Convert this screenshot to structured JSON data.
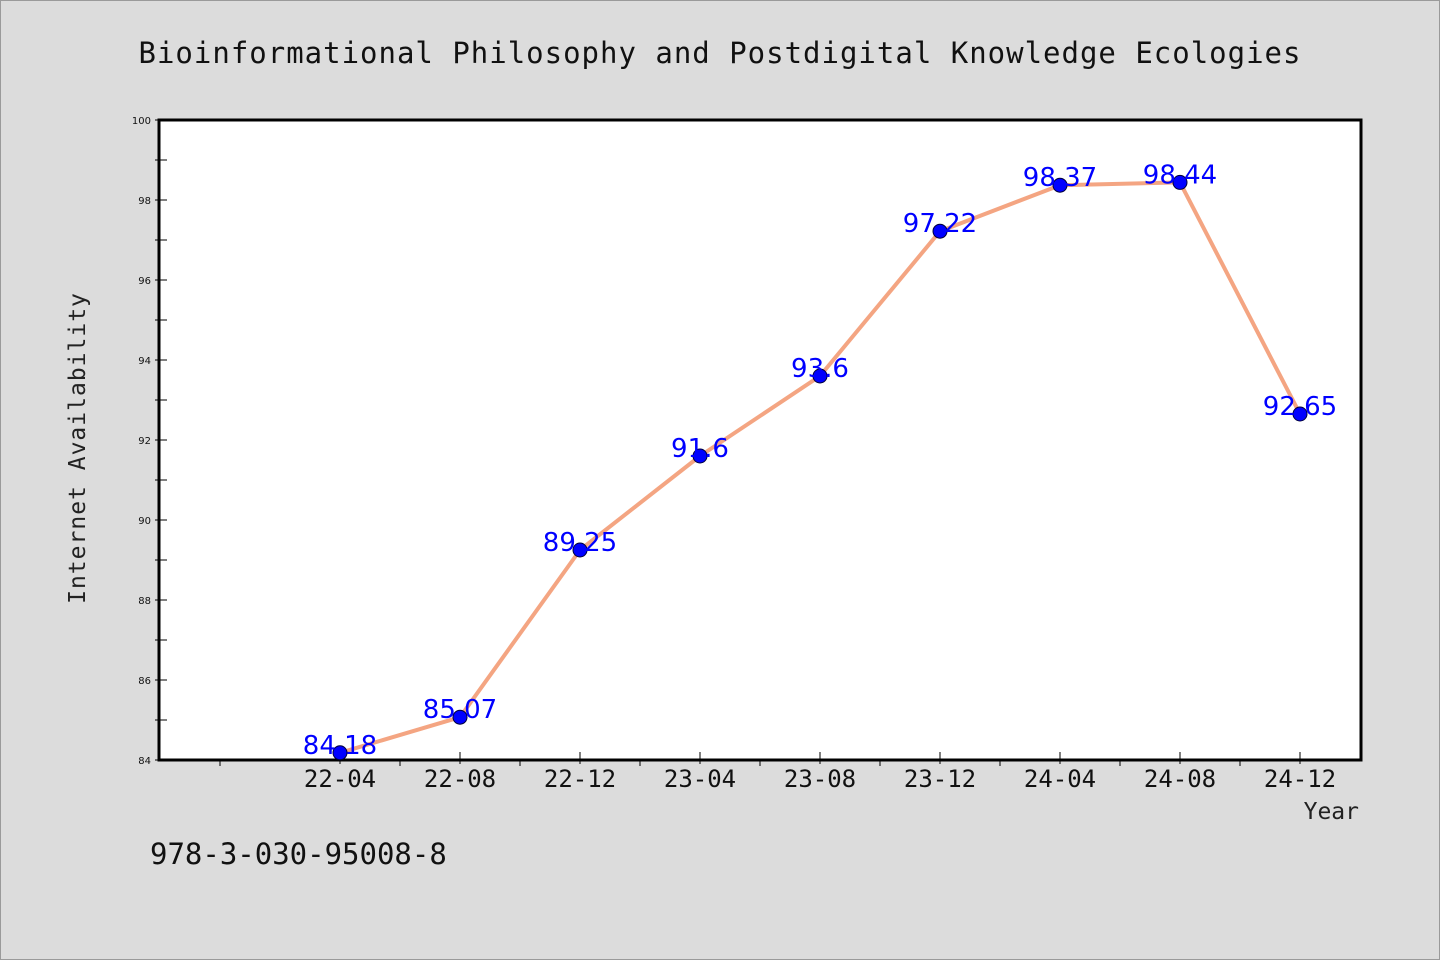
{
  "chart_data": {
    "type": "line",
    "title": "Bioinformational Philosophy and Postdigital Knowledge Ecologies",
    "xlabel": "Year",
    "ylabel": "Internet Availability",
    "categories": [
      "22-04",
      "22-08",
      "22-12",
      "23-04",
      "23-08",
      "23-12",
      "24-04",
      "24-08",
      "24-12"
    ],
    "series": [
      {
        "values": [
          84.18,
          85.07,
          89.25,
          91.6,
          93.6,
          97.22,
          98.37,
          98.44,
          92.65
        ],
        "labels": [
          "84.18",
          "85.07",
          "89.25",
          "91.6",
          "93.6",
          "97.22",
          "98.37",
          "98.44",
          "92.65"
        ]
      }
    ],
    "ylim": [
      84,
      100
    ],
    "yticks": [
      84,
      86,
      88,
      90,
      92,
      94,
      96,
      98,
      100
    ],
    "grid": false,
    "legend": "none",
    "colors": {
      "line": "#f4a582",
      "marker": "#0000ff",
      "label": "#0000ff",
      "background": "#dcdcdc",
      "plot": "#ffffff"
    }
  },
  "footnote": "978-3-030-95008-8"
}
